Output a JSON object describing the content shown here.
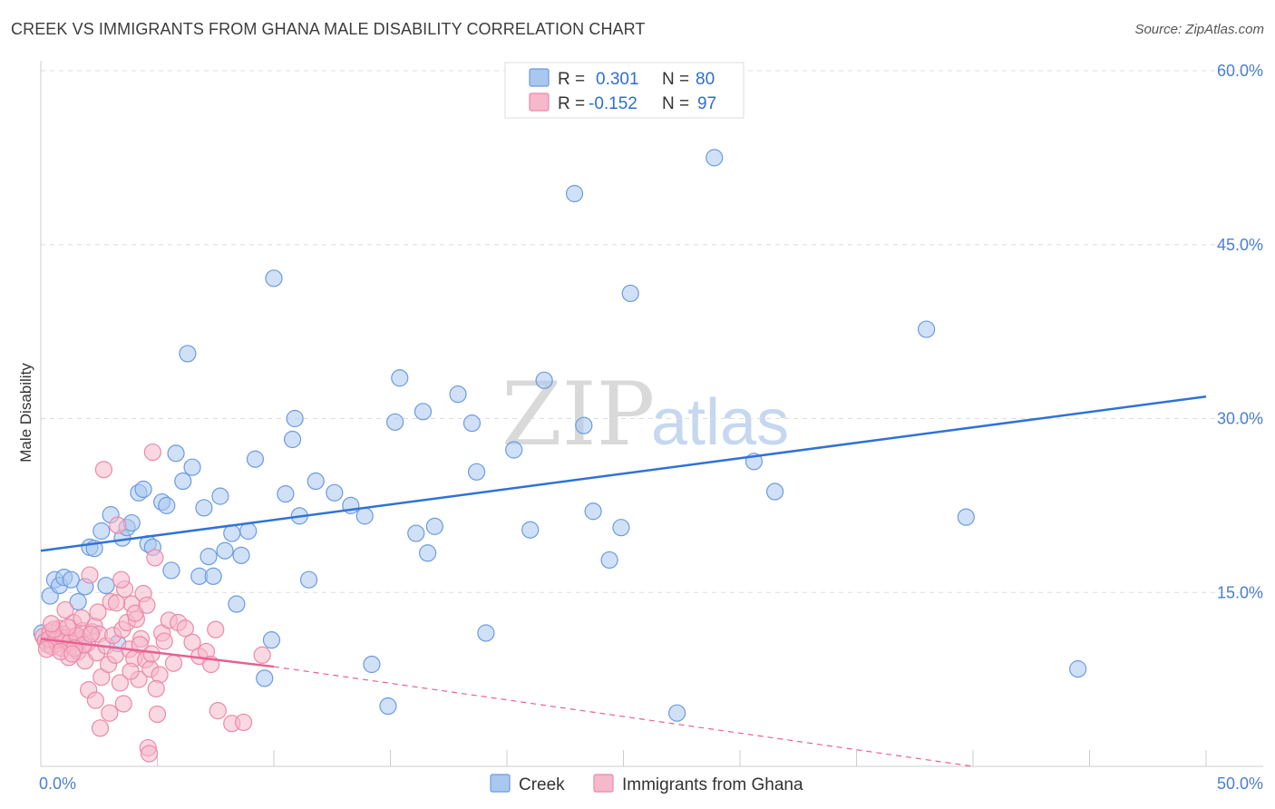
{
  "title": "CREEK VS IMMIGRANTS FROM GHANA MALE DISABILITY CORRELATION CHART",
  "source": "Source: ZipAtlas.com",
  "colors": {
    "creek_fill": "#a9c8f0",
    "creek_stroke": "#6c9be0",
    "creek_line": "#2f72d8",
    "ghana_fill": "#f6b8cb",
    "ghana_stroke": "#ec89a8",
    "ghana_line": "#e86090",
    "tick_text": "#4a7fd0",
    "grid": "#dddddd"
  },
  "legend": {
    "rows": [
      {
        "r_label": "R =",
        "r_value": "0.301",
        "n_label": "N =",
        "n_value": "80",
        "color": "creek"
      },
      {
        "r_label": "R =",
        "r_value": "-0.152",
        "n_label": "N =",
        "n_value": "97",
        "color": "ghana"
      }
    ]
  },
  "watermark": {
    "zip": "ZIP",
    "atlas": "atlas"
  },
  "chart_data": {
    "type": "scatter",
    "title": "CREEK VS IMMIGRANTS FROM GHANA MALE DISABILITY CORRELATION CHART",
    "xlabel": "",
    "ylabel": "Male Disability",
    "xlim": [
      0,
      50
    ],
    "ylim": [
      0,
      60
    ],
    "x_tick_labels": [
      "0.0%",
      "50.0%"
    ],
    "y_ticks": [
      15,
      30,
      45,
      60
    ],
    "y_tick_labels": [
      "15.0%",
      "30.0%",
      "45.0%",
      "60.0%"
    ],
    "grid": true,
    "legend_position": "top-center",
    "series": [
      {
        "name": "Creek",
        "color": "creek",
        "trend": {
          "x": [
            0,
            50
          ],
          "y": [
            18.6,
            31.9
          ],
          "style": "solid"
        },
        "points": [
          [
            0.4,
            14.7
          ],
          [
            0.6,
            16.1
          ],
          [
            0.8,
            15.6
          ],
          [
            1.0,
            16.3
          ],
          [
            1.3,
            16.1
          ],
          [
            1.6,
            14.2
          ],
          [
            1.9,
            15.5
          ],
          [
            2.1,
            18.9
          ],
          [
            2.3,
            18.8
          ],
          [
            2.6,
            20.3
          ],
          [
            2.8,
            15.6
          ],
          [
            3.0,
            21.7
          ],
          [
            3.3,
            10.6
          ],
          [
            3.5,
            19.7
          ],
          [
            3.7,
            20.6
          ],
          [
            3.9,
            21.0
          ],
          [
            4.2,
            23.6
          ],
          [
            4.4,
            23.9
          ],
          [
            4.6,
            19.2
          ],
          [
            4.8,
            18.9
          ],
          [
            5.2,
            22.8
          ],
          [
            5.4,
            22.5
          ],
          [
            5.6,
            16.9
          ],
          [
            5.8,
            27.0
          ],
          [
            6.1,
            24.6
          ],
          [
            6.3,
            35.6
          ],
          [
            6.5,
            25.8
          ],
          [
            6.8,
            16.4
          ],
          [
            7.0,
            22.3
          ],
          [
            7.2,
            18.1
          ],
          [
            7.4,
            16.4
          ],
          [
            7.7,
            23.3
          ],
          [
            7.9,
            18.6
          ],
          [
            8.2,
            20.1
          ],
          [
            8.4,
            14.0
          ],
          [
            8.6,
            18.2
          ],
          [
            8.9,
            20.3
          ],
          [
            9.2,
            26.5
          ],
          [
            9.6,
            7.6
          ],
          [
            9.9,
            10.9
          ],
          [
            10.0,
            42.1
          ],
          [
            10.5,
            23.5
          ],
          [
            10.8,
            28.2
          ],
          [
            10.9,
            30.0
          ],
          [
            11.1,
            21.6
          ],
          [
            11.5,
            16.1
          ],
          [
            11.8,
            24.6
          ],
          [
            12.6,
            23.6
          ],
          [
            13.3,
            22.5
          ],
          [
            13.9,
            21.6
          ],
          [
            14.2,
            8.8
          ],
          [
            14.9,
            5.2
          ],
          [
            15.2,
            29.7
          ],
          [
            15.4,
            33.5
          ],
          [
            16.1,
            20.1
          ],
          [
            16.4,
            30.6
          ],
          [
            16.6,
            18.4
          ],
          [
            16.9,
            20.7
          ],
          [
            17.9,
            32.1
          ],
          [
            18.5,
            29.6
          ],
          [
            18.7,
            25.4
          ],
          [
            19.1,
            11.5
          ],
          [
            20.3,
            27.3
          ],
          [
            21.0,
            20.4
          ],
          [
            21.6,
            33.3
          ],
          [
            22.9,
            49.4
          ],
          [
            23.3,
            29.4
          ],
          [
            23.7,
            22.0
          ],
          [
            24.4,
            17.8
          ],
          [
            24.9,
            20.6
          ],
          [
            25.3,
            40.8
          ],
          [
            27.3,
            4.6
          ],
          [
            28.9,
            52.5
          ],
          [
            30.6,
            26.3
          ],
          [
            31.5,
            23.7
          ],
          [
            38.0,
            37.7
          ],
          [
            39.7,
            21.5
          ],
          [
            44.5,
            8.4
          ],
          [
            0.05,
            11.5
          ],
          [
            1.6,
            10.7
          ]
        ]
      },
      {
        "name": "Immigrants from Ghana",
        "color": "ghana",
        "trend": {
          "x": [
            0,
            10
          ],
          "y": [
            11.0,
            8.6
          ],
          "style": "solid",
          "extension": {
            "x": [
              10,
              40
            ],
            "y": [
              8.6,
              0.0
            ],
            "style": "dashed"
          }
        },
        "points": [
          [
            0.1,
            11.2
          ],
          [
            0.2,
            10.8
          ],
          [
            0.3,
            10.5
          ],
          [
            0.4,
            11.6
          ],
          [
            0.5,
            10.3
          ],
          [
            0.6,
            11.0
          ],
          [
            0.7,
            10.6
          ],
          [
            0.8,
            11.9
          ],
          [
            0.9,
            10.2
          ],
          [
            1.0,
            11.4
          ],
          [
            1.1,
            10.8
          ],
          [
            1.2,
            9.4
          ],
          [
            1.3,
            10.4
          ],
          [
            1.4,
            12.4
          ],
          [
            1.5,
            11.2
          ],
          [
            1.6,
            9.9
          ],
          [
            1.7,
            10.9
          ],
          [
            1.8,
            11.7
          ],
          [
            1.9,
            9.1
          ],
          [
            2.0,
            10.6
          ],
          [
            2.1,
            16.5
          ],
          [
            2.2,
            11.6
          ],
          [
            2.3,
            12.1
          ],
          [
            2.4,
            9.8
          ],
          [
            2.5,
            11.4
          ],
          [
            2.6,
            7.7
          ],
          [
            2.7,
            25.6
          ],
          [
            2.8,
            10.4
          ],
          [
            2.9,
            8.8
          ],
          [
            3.0,
            14.2
          ],
          [
            3.1,
            11.3
          ],
          [
            3.2,
            9.6
          ],
          [
            3.3,
            20.8
          ],
          [
            3.4,
            7.2
          ],
          [
            3.5,
            11.8
          ],
          [
            3.6,
            15.3
          ],
          [
            3.7,
            12.4
          ],
          [
            3.8,
            10.1
          ],
          [
            3.9,
            14.0
          ],
          [
            4.0,
            9.3
          ],
          [
            4.1,
            12.7
          ],
          [
            4.2,
            7.5
          ],
          [
            4.3,
            11.0
          ],
          [
            4.4,
            14.9
          ],
          [
            4.5,
            9.2
          ],
          [
            4.6,
            1.6
          ],
          [
            4.7,
            8.4
          ],
          [
            4.8,
            27.1
          ],
          [
            4.9,
            18.0
          ],
          [
            5.0,
            4.5
          ],
          [
            5.1,
            7.9
          ],
          [
            5.2,
            11.5
          ],
          [
            5.3,
            10.8
          ],
          [
            5.5,
            12.6
          ],
          [
            5.7,
            8.9
          ],
          [
            5.9,
            12.4
          ],
          [
            6.2,
            11.9
          ],
          [
            6.5,
            10.7
          ],
          [
            6.8,
            9.5
          ],
          [
            7.1,
            9.9
          ],
          [
            7.3,
            8.8
          ],
          [
            7.5,
            11.8
          ],
          [
            7.6,
            4.8
          ],
          [
            8.2,
            3.7
          ],
          [
            8.7,
            3.8
          ],
          [
            9.5,
            9.6
          ],
          [
            0.35,
            11.0
          ],
          [
            0.65,
            10.9
          ],
          [
            0.95,
            11.1
          ],
          [
            1.25,
            10.7
          ],
          [
            1.55,
            11.3
          ],
          [
            1.85,
            10.5
          ],
          [
            2.15,
            11.4
          ],
          [
            0.25,
            10.1
          ],
          [
            0.55,
            11.8
          ],
          [
            0.85,
            9.9
          ],
          [
            1.15,
            12.0
          ],
          [
            1.45,
            10.2
          ],
          [
            1.75,
            12.8
          ],
          [
            2.05,
            6.6
          ],
          [
            2.35,
            5.7
          ],
          [
            2.55,
            3.3
          ],
          [
            2.95,
            4.6
          ],
          [
            3.25,
            14.1
          ],
          [
            3.55,
            5.4
          ],
          [
            3.85,
            8.2
          ],
          [
            4.05,
            13.2
          ],
          [
            4.25,
            10.5
          ],
          [
            4.55,
            13.9
          ],
          [
            4.75,
            9.7
          ],
          [
            4.95,
            6.7
          ],
          [
            2.45,
            13.3
          ],
          [
            1.05,
            13.5
          ],
          [
            0.45,
            12.3
          ],
          [
            1.35,
            9.7
          ],
          [
            4.65,
            1.1
          ],
          [
            3.45,
            16.1
          ]
        ]
      }
    ]
  },
  "bottom_legend": [
    {
      "label": "Creek",
      "color": "creek"
    },
    {
      "label": "Immigrants from Ghana",
      "color": "ghana"
    }
  ]
}
